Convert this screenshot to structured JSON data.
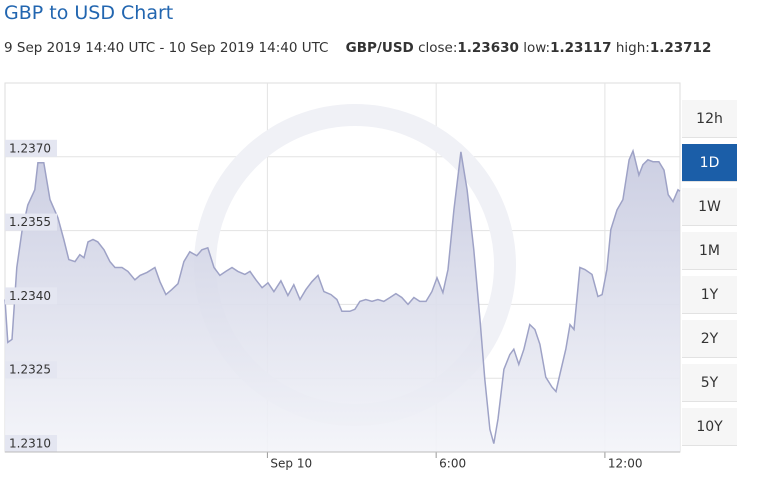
{
  "chart_data": {
    "type": "area",
    "title": "GBP to USD Chart",
    "subtitle": "9 Sep 2019 14:40 UTC - 10 Sep 2019 14:40 UTC",
    "pair": "GBP/USD",
    "stats": [
      {
        "label": "close:",
        "value": "1.23630"
      },
      {
        "label": "low:",
        "value": "1.23117"
      },
      {
        "label": "high:",
        "value": "1.23712"
      }
    ],
    "x": [
      -9.33,
      -9.23,
      -9.08,
      -8.91,
      -8.73,
      -8.52,
      -8.27,
      -8.16,
      -7.95,
      -7.73,
      -7.45,
      -7.24,
      -7.06,
      -6.84,
      -6.67,
      -6.52,
      -6.38,
      -6.2,
      -6.03,
      -5.81,
      -5.6,
      -5.42,
      -5.17,
      -4.96,
      -4.71,
      -4.53,
      -4.28,
      -4.0,
      -3.82,
      -3.61,
      -3.4,
      -3.18,
      -2.97,
      -2.76,
      -2.51,
      -2.33,
      -2.12,
      -1.9,
      -1.69,
      -1.48,
      -1.26,
      -1.05,
      -0.8,
      -0.62,
      -0.41,
      -0.19,
      0.02,
      0.23,
      0.48,
      0.73,
      0.94,
      1.16,
      1.37,
      1.58,
      1.8,
      2.01,
      2.26,
      2.47,
      2.65,
      2.93,
      3.11,
      3.29,
      3.5,
      3.72,
      3.93,
      4.14,
      4.36,
      4.57,
      4.78,
      5.0,
      5.21,
      5.42,
      5.64,
      5.85,
      6.03,
      6.24,
      6.42,
      6.63,
      6.88,
      7.1,
      7.34,
      7.56,
      7.73,
      7.91,
      8.05,
      8.2,
      8.41,
      8.62,
      8.76,
      8.94,
      9.12,
      9.33,
      9.51,
      9.69,
      9.9,
      10.12,
      10.26,
      10.4,
      10.61,
      10.76,
      10.9,
      11.11,
      11.29,
      11.54,
      11.75,
      11.9,
      12.07,
      12.21,
      12.43,
      12.64,
      12.86,
      13.0,
      13.21,
      13.35,
      13.53,
      13.71,
      13.92,
      14.1,
      14.25,
      14.42,
      14.6,
      14.67
    ],
    "series": [
      {
        "name": "GBP/USD",
        "color": "#9ea2c6",
        "values": [
          1.2341,
          1.23323,
          1.23329,
          1.23475,
          1.23548,
          1.23602,
          1.23633,
          1.23688,
          1.23688,
          1.23613,
          1.23576,
          1.23532,
          1.23491,
          1.23487,
          1.23501,
          1.23495,
          1.23527,
          1.23532,
          1.23527,
          1.23511,
          1.23487,
          1.23475,
          1.23475,
          1.23467,
          1.2345,
          1.23459,
          1.23465,
          1.23475,
          1.23446,
          1.2342,
          1.2343,
          1.23442,
          1.23487,
          1.23507,
          1.23499,
          1.23511,
          1.23515,
          1.23475,
          1.23459,
          1.23467,
          1.23475,
          1.23467,
          1.23461,
          1.23467,
          1.2345,
          1.23434,
          1.23444,
          1.23426,
          1.23448,
          1.23418,
          1.2344,
          1.2341,
          1.2343,
          1.23446,
          1.23459,
          1.23426,
          1.2342,
          1.2341,
          1.23386,
          1.23386,
          1.2339,
          1.23406,
          1.2341,
          1.23406,
          1.2341,
          1.23406,
          1.23414,
          1.23422,
          1.23414,
          1.234,
          1.23414,
          1.23406,
          1.23406,
          1.23426,
          1.23454,
          1.23424,
          1.23471,
          1.23592,
          1.2371,
          1.23633,
          1.23511,
          1.23369,
          1.23248,
          1.23146,
          1.23117,
          1.23167,
          1.23268,
          1.23298,
          1.23309,
          1.23278,
          1.23309,
          1.23359,
          1.23349,
          1.23319,
          1.23252,
          1.23232,
          1.23223,
          1.23258,
          1.23309,
          1.23359,
          1.23349,
          1.23475,
          1.23471,
          1.23461,
          1.23416,
          1.2342,
          1.23471,
          1.23552,
          1.23592,
          1.23613,
          1.23694,
          1.23712,
          1.23663,
          1.23684,
          1.23694,
          1.2369,
          1.2369,
          1.23673,
          1.23623,
          1.23609,
          1.23633,
          1.2363
        ]
      }
    ],
    "xlim": [
      -9.33,
      14.67
    ],
    "xticks": [
      {
        "value": 0,
        "label": "Sep 10"
      },
      {
        "value": 6,
        "label": "6:00"
      },
      {
        "value": 12,
        "label": "12:00"
      }
    ],
    "ylim": [
      1.231,
      1.2385
    ],
    "yticks": [
      {
        "value": 1.237,
        "label": "1.2370"
      },
      {
        "value": 1.2355,
        "label": "1.2355"
      },
      {
        "value": 1.234,
        "label": "1.2340"
      },
      {
        "value": 1.2325,
        "label": "1.2325"
      },
      {
        "value": 1.231,
        "label": "1.2310"
      }
    ],
    "grid": true,
    "periods": [
      "12h",
      "1D",
      "1W",
      "1M",
      "1Y",
      "2Y",
      "5Y",
      "10Y"
    ],
    "selected_period": "1D"
  }
}
